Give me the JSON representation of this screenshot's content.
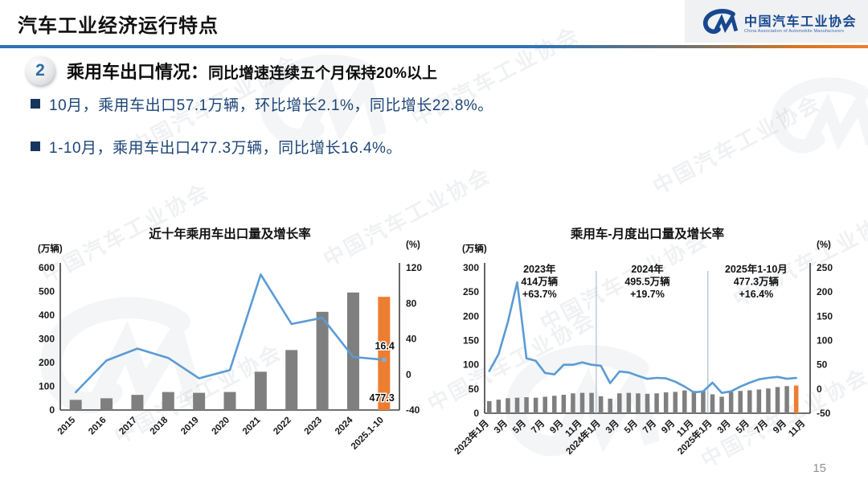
{
  "header": {
    "title": "汽车工业经济运行特点",
    "logo": {
      "org_cn": "中国汽车工业协会",
      "org_en": "China Association of Automobile Manufacturers",
      "brand_blue": "#17488f"
    }
  },
  "section": {
    "number": "2",
    "heading": "乘用车出口情况：",
    "subheading": "同比增速连续五个月保持20%以上"
  },
  "bullets": [
    "10月，乘用车出口57.1万辆，环比增长2.1%，同比增长22.8%。",
    "1-10月，乘用车出口477.3万辆，同比增长16.4%。"
  ],
  "page_number": "15",
  "colors": {
    "accent_blue": "#2e74b5",
    "accent_orange": "#ed7d31",
    "bar_gray": "#7f7f7f",
    "bar_orange": "#ed7d31",
    "line_blue": "#5b9bd5",
    "bullet_navy": "#17365d"
  },
  "chart_data": [
    {
      "type": "bar",
      "subtype": "bar+line combo (volume bars, YoY growth line)",
      "title": "近十年乘用车出口量及增长率",
      "left_axis_label": "(万辆)",
      "right_axis_label": "(%)",
      "n_slots": 11,
      "categories": [
        "2015",
        "2016",
        "2017",
        "2018",
        "2019",
        "2020",
        "2021",
        "2022",
        "2023",
        "2024",
        "2025.1-10"
      ],
      "x_tick_labels": [
        "2015",
        "2016",
        "2017",
        "2018",
        "2019",
        "2020",
        "2021",
        "2022",
        "2023",
        "2024",
        "2025.1-10"
      ],
      "x_tick_every": 1,
      "bars": [
        42.8,
        49.5,
        63.9,
        75.8,
        72.5,
        76.0,
        161.4,
        252.9,
        414.0,
        495.5,
        477.3
      ],
      "bars_unit": "万辆",
      "line": [
        -20.0,
        15.7,
        29.1,
        18.6,
        -4.4,
        4.8,
        112.4,
        56.7,
        63.7,
        19.7,
        16.4
      ],
      "line_unit": "%",
      "highlight_index": 10,
      "bar_label": {
        "text": "477.3",
        "index": 10
      },
      "line_label": {
        "text": "16.4",
        "index": 10
      },
      "end_marker": true,
      "left_ylim": [
        0,
        600
      ],
      "left_ticks": [
        0,
        100,
        200,
        300,
        400,
        500,
        600
      ],
      "right_ylim": [
        -40,
        120
      ],
      "right_ticks": [
        -40,
        0,
        40,
        80,
        120
      ],
      "grid": "off",
      "legend": "none"
    },
    {
      "type": "bar",
      "subtype": "bar+line combo (monthly volume bars, YoY growth line)",
      "title": "乘用车-月度出口量及增长率",
      "left_axis_label": "(万辆)",
      "right_axis_label": "(%)",
      "n_slots": 35,
      "categories": [
        "2023-01",
        "2023-02",
        "2023-03",
        "2023-04",
        "2023-05",
        "2023-06",
        "2023-07",
        "2023-08",
        "2023-09",
        "2023-10",
        "2023-11",
        "2023-12",
        "2024-01",
        "2024-02",
        "2024-03",
        "2024-04",
        "2024-05",
        "2024-06",
        "2024-07",
        "2024-08",
        "2024-09",
        "2024-10",
        "2024-11",
        "2024-12",
        "2025-01",
        "2025-02",
        "2025-03",
        "2025-04",
        "2025-05",
        "2025-06",
        "2025-07",
        "2025-08",
        "2025-09",
        "2025-10"
      ],
      "x_tick_labels": [
        "2023年1月",
        "3月",
        "5月",
        "7月",
        "9月",
        "11月",
        "2024年1月",
        "3月",
        "5月",
        "7月",
        "9月",
        "11月",
        "2025年1月",
        "3月",
        "5月",
        "7月",
        "9月",
        "11月"
      ],
      "x_tick_every": 2,
      "bars": [
        25,
        28,
        31,
        32,
        33,
        32,
        34,
        36,
        38,
        41,
        42,
        42,
        35,
        30,
        41,
        42,
        41,
        40,
        41,
        43,
        44,
        47,
        46,
        45.5,
        39,
        34,
        44,
        46,
        47.3,
        49,
        51,
        54,
        55.9,
        57.1
      ],
      "bars_unit": "万辆",
      "line": [
        37,
        72,
        138,
        220,
        63,
        58,
        33,
        30,
        50,
        50,
        55,
        50,
        48,
        12,
        36,
        34,
        27,
        21,
        23,
        22,
        15,
        5,
        -7,
        -5,
        13,
        -8,
        -5,
        5,
        13,
        20,
        23,
        25,
        21,
        22.8
      ],
      "line_unit": "%",
      "highlight_index": 33,
      "divider_slots": [
        12,
        24
      ],
      "annotations": [
        {
          "label": "2023年",
          "value": "414万辆",
          "growth": "+63.7%"
        },
        {
          "label": "2024年",
          "value": "495.5万辆",
          "growth": "+19.7%"
        },
        {
          "label": "2025年1-10月",
          "value": "477.3万辆",
          "growth": "+16.4%"
        }
      ],
      "annotation_slots": [
        5.9,
        17.5,
        29.2
      ],
      "left_ylim": [
        0,
        300
      ],
      "left_ticks": [
        0,
        50,
        100,
        150,
        200,
        250,
        300
      ],
      "right_ylim": [
        -50,
        250
      ],
      "right_ticks": [
        -50,
        0,
        50,
        100,
        150,
        200,
        250
      ],
      "grid": "off",
      "legend": "none"
    }
  ]
}
